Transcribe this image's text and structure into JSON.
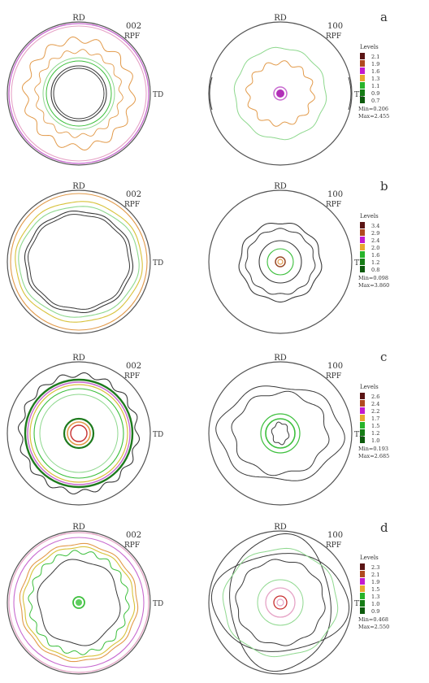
{
  "figure": {
    "panels": [
      {
        "letter": "a",
        "poles": [
          {
            "rd": "RD",
            "td": "TD",
            "plane": "002",
            "type": "RPF"
          },
          {
            "rd": "RD",
            "td": "TD",
            "plane": "100",
            "type": "RPF"
          }
        ],
        "legend": {
          "title": "Levels",
          "levels": [
            "2.1",
            "1.9",
            "1.6",
            "1.3",
            "1.1",
            "0.9",
            "0.7"
          ],
          "min": "Min=0.206",
          "max": "Max=2.455"
        }
      },
      {
        "letter": "b",
        "poles": [
          {
            "rd": "RD",
            "td": "TD",
            "plane": "002",
            "type": "RPF"
          },
          {
            "rd": "RD",
            "td": "TD",
            "plane": "100",
            "type": "RPF"
          }
        ],
        "legend": {
          "title": "Levels",
          "levels": [
            "3.4",
            "2.9",
            "2.4",
            "2.0",
            "1.6",
            "1.2",
            "0.8"
          ],
          "min": "Min=0.098",
          "max": "Max=3.860"
        }
      },
      {
        "letter": "c",
        "poles": [
          {
            "rd": "RD",
            "td": "TD",
            "plane": "002",
            "type": "RPF"
          },
          {
            "rd": "RD",
            "td": "TD",
            "plane": "100",
            "type": "RPF"
          }
        ],
        "legend": {
          "title": "Levels",
          "levels": [
            "2.6",
            "2.4",
            "2.2",
            "1.7",
            "1.5",
            "1.2",
            "1.0"
          ],
          "min": "Min=0.193",
          "max": "Max=2.685"
        }
      },
      {
        "letter": "d",
        "poles": [
          {
            "rd": "RD",
            "td": "TD",
            "plane": "002",
            "type": "RPF"
          },
          {
            "rd": "RD",
            "td": "TD",
            "plane": "100",
            "type": "RPF"
          }
        ],
        "legend": {
          "title": "Levels",
          "levels": [
            "2.3",
            "2.1",
            "1.9",
            "1.5",
            "1.3",
            "1.0",
            "0.9"
          ],
          "min": "Min=0.468",
          "max": "Max=2.550"
        }
      }
    ],
    "colors": {
      "levels": [
        "#5a1414",
        "#b04a1e",
        "#c21bd0",
        "#e8a830",
        "#27b32a",
        "#167d16",
        "#0d5a0d"
      ],
      "outline": "#555555",
      "contour": {
        "dark": "#3a3a3a",
        "green": "#3cbf3c",
        "lightgreen": "#8ed88e",
        "orange": "#e29a4a",
        "yellow": "#d8c23a",
        "magenta": "#c86ad0",
        "pink": "#e6a3c6",
        "darkgreen": "#1d7a1d",
        "brown": "#9a4a2a",
        "red": "#c83030"
      }
    }
  }
}
